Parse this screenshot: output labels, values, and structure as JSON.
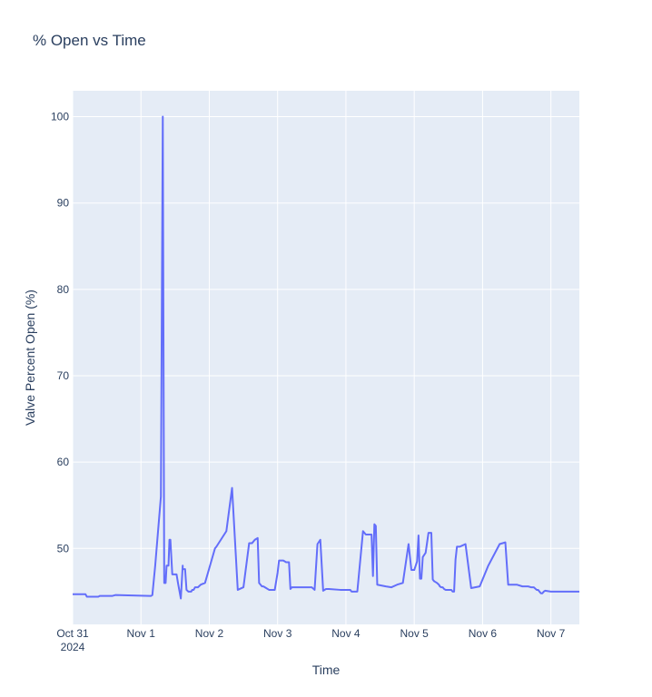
{
  "chart_data": {
    "type": "line",
    "title": "% Open vs Time",
    "xlabel": "Time",
    "ylabel": "Valve Percent Open (%)",
    "ylim": [
      41.2,
      103
    ],
    "xlim": [
      "2024-10-31 00:00",
      "2024-11-07 10:00"
    ],
    "y_ticks": [
      50,
      60,
      70,
      80,
      90,
      100
    ],
    "x_ticks": [
      {
        "t": "2024-10-31 00:00",
        "label": "Oct 31",
        "sublabel": "2024"
      },
      {
        "t": "2024-11-01 00:00",
        "label": "Nov 1"
      },
      {
        "t": "2024-11-02 00:00",
        "label": "Nov 2"
      },
      {
        "t": "2024-11-03 00:00",
        "label": "Nov 3"
      },
      {
        "t": "2024-11-04 00:00",
        "label": "Nov 4"
      },
      {
        "t": "2024-11-05 00:00",
        "label": "Nov 5"
      },
      {
        "t": "2024-11-06 00:00",
        "label": "Nov 6"
      },
      {
        "t": "2024-11-07 00:00",
        "label": "Nov 7"
      }
    ],
    "grid": true,
    "plot_bgcolor": "#e5ecf6",
    "series": [
      {
        "color": "#636efa",
        "x": [
          "2024-10-31 00:00",
          "2024-10-31 04:30",
          "2024-10-31 05:00",
          "2024-10-31 09:00",
          "2024-10-31 09:30",
          "2024-10-31 14:00",
          "2024-10-31 15:00",
          "2024-11-01 03:00",
          "2024-11-01 03:30",
          "2024-11-01 04:00",
          "2024-11-01 05:00",
          "2024-11-01 06:00",
          "2024-11-01 07:00",
          "2024-11-01 07:40",
          "2024-11-01 08:10",
          "2024-11-01 08:40",
          "2024-11-01 09:00",
          "2024-11-01 09:40",
          "2024-11-01 10:00",
          "2024-11-01 10:20",
          "2024-11-01 11:00",
          "2024-11-01 12:30",
          "2024-11-01 13:00",
          "2024-11-01 14:00",
          "2024-11-01 14:40",
          "2024-11-01 14:40",
          "2024-11-01 15:30",
          "2024-11-01 16:00",
          "2024-11-01 16:40",
          "2024-11-01 17:00",
          "2024-11-01 17:20",
          "2024-11-01 17:40",
          "2024-11-01 18:00",
          "2024-11-01 18:30",
          "2024-11-01 19:00",
          "2024-11-01 19:30",
          "2024-11-01 20:00",
          "2024-11-01 21:00",
          "2024-11-01 22:30",
          "2024-11-02 02:00",
          "2024-11-02 02:30",
          "2024-11-02 06:00",
          "2024-11-02 08:00",
          "2024-11-02 10:00",
          "2024-11-02 12:00",
          "2024-11-02 14:00",
          "2024-11-02 15:00",
          "2024-11-02 16:00",
          "2024-11-02 17:00",
          "2024-11-02 17:30",
          "2024-11-02 18:30",
          "2024-11-02 19:00",
          "2024-11-02 20:00",
          "2024-11-02 21:00",
          "2024-11-02 21:40",
          "2024-11-02 22:00",
          "2024-11-02 22:30",
          "2024-11-02 23:00",
          "2024-11-03 00:00",
          "2024-11-03 00:30",
          "2024-11-03 01:00",
          "2024-11-03 02:00",
          "2024-11-03 03:00",
          "2024-11-03 04:00",
          "2024-11-03 04:30",
          "2024-11-03 05:00",
          "2024-11-03 08:00",
          "2024-11-03 08:30",
          "2024-11-03 12:00",
          "2024-11-03 13:00",
          "2024-11-03 14:00",
          "2024-11-03 15:00",
          "2024-11-03 16:00",
          "2024-11-03 17:00",
          "2024-11-03 18:00",
          "2024-11-03 22:00",
          "2024-11-03 23:00",
          "2024-11-04 00:00",
          "2024-11-04 01:00",
          "2024-11-04 01:30",
          "2024-11-04 02:00",
          "2024-11-04 04:00",
          "2024-11-04 06:00",
          "2024-11-04 07:00",
          "2024-11-04 09:00",
          "2024-11-04 09:30",
          "2024-11-04 10:00",
          "2024-11-04 10:30",
          "2024-11-04 11:00",
          "2024-11-04 14:00",
          "2024-11-04 16:00",
          "2024-11-04 18:00",
          "2024-11-04 20:00",
          "2024-11-04 22:00",
          "2024-11-04 23:00",
          "2024-11-05 00:00",
          "2024-11-05 00:30",
          "2024-11-05 01:00",
          "2024-11-05 01:30",
          "2024-11-05 02:00",
          "2024-11-05 02:30",
          "2024-11-05 03:00",
          "2024-11-05 04:00",
          "2024-11-05 05:00",
          "2024-11-05 06:00",
          "2024-11-05 06:30",
          "2024-11-05 07:00",
          "2024-11-05 08:00",
          "2024-11-05 08:40",
          "2024-11-05 09:00",
          "2024-11-05 09:30",
          "2024-11-05 10:00",
          "2024-11-05 10:30",
          "2024-11-05 11:00",
          "2024-11-05 11:30",
          "2024-11-05 12:00",
          "2024-11-05 12:30",
          "2024-11-05 13:00",
          "2024-11-05 13:30",
          "2024-11-05 14:00",
          "2024-11-05 14:30",
          "2024-11-05 15:00",
          "2024-11-05 16:00",
          "2024-11-05 18:00",
          "2024-11-05 20:00",
          "2024-11-05 23:00",
          "2024-11-06 02:00",
          "2024-11-06 06:00",
          "2024-11-06 08:00",
          "2024-11-06 09:00",
          "2024-11-06 12:00",
          "2024-11-06 14:00",
          "2024-11-06 15:00",
          "2024-11-06 15:30",
          "2024-11-06 16:00",
          "2024-11-06 17:00",
          "2024-11-06 18:00",
          "2024-11-06 19:00",
          "2024-11-06 19:30",
          "2024-11-06 20:00",
          "2024-11-06 20:30",
          "2024-11-06 21:00",
          "2024-11-06 21:30",
          "2024-11-06 22:00",
          "2024-11-07 00:00",
          "2024-11-07 03:00",
          "2024-11-07 04:00",
          "2024-11-07 06:00",
          "2024-11-07 07:00",
          "2024-11-07 10:00"
        ],
        "y": [
          44.7,
          44.7,
          44.4,
          44.4,
          44.5,
          44.5,
          44.6,
          44.5,
          44.5,
          44.6,
          48.0,
          52.0,
          56.0,
          100.0,
          46.0,
          46.0,
          48.0,
          48.0,
          51.0,
          51.0,
          47.0,
          47.0,
          46.0,
          44.2,
          48.0,
          47.6,
          47.6,
          45.2,
          45.0,
          45.0,
          45.0,
          45.0,
          45.2,
          45.2,
          45.5,
          45.5,
          45.5,
          45.8,
          46.0,
          50.0,
          50.2,
          52.0,
          57.0,
          45.2,
          45.5,
          50.6,
          50.6,
          51.0,
          51.2,
          46.0,
          45.6,
          45.6,
          45.4,
          45.2,
          45.2,
          45.2,
          45.2,
          45.2,
          47.2,
          48.6,
          48.6,
          48.6,
          48.4,
          48.4,
          45.3,
          45.5,
          45.5,
          45.5,
          45.5,
          45.2,
          50.5,
          51.0,
          45.1,
          45.3,
          45.3,
          45.2,
          45.2,
          45.2,
          45.2,
          45.2,
          45.0,
          45.0,
          52.0,
          51.6,
          51.6,
          46.8,
          52.8,
          52.6,
          45.8,
          45.6,
          45.5,
          45.8,
          46.0,
          50.5,
          47.5,
          47.5,
          48.0,
          48.5,
          51.5,
          46.5,
          46.5,
          49.0,
          49.5,
          51.8,
          51.8,
          46.4,
          46.2,
          46.0,
          45.8,
          45.6,
          45.5,
          45.5,
          45.3,
          45.2,
          45.2,
          45.2,
          45.2,
          45.2,
          45.0,
          45.0,
          48.7,
          50.2,
          50.2,
          50.5,
          45.4,
          45.6,
          48.0,
          50.5,
          50.7,
          45.8,
          45.8,
          45.6,
          45.6,
          45.6,
          45.6,
          45.5,
          45.5,
          45.2,
          45.2,
          45.0,
          44.8,
          44.8,
          45.0,
          45.1,
          45.0,
          45.0,
          45.0,
          45.0,
          45.0,
          45.0
        ]
      }
    ]
  }
}
